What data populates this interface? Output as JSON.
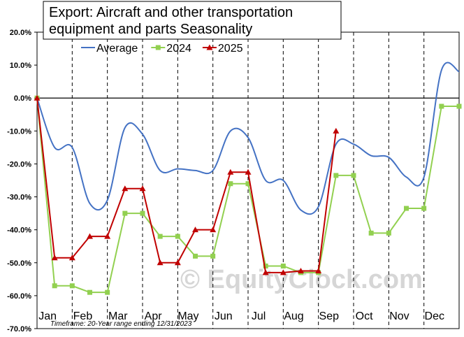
{
  "chart_data": {
    "type": "line",
    "title_lines": [
      "Export: Aircraft and other transportation",
      "equipment and parts Seasonality"
    ],
    "footnote": "Timeframe: 20-Year range ending 12/31/2023",
    "watermark": "© EquityClock.com",
    "ylim": [
      -70,
      20
    ],
    "ytick_values": [
      20,
      10,
      0,
      -10,
      -20,
      -30,
      -40,
      -50,
      -60,
      -70
    ],
    "ytick_labels": [
      "20.0%",
      "10.0%",
      "0.0%",
      "-10.0%",
      "-20.0%",
      "-30.0%",
      "-40.0%",
      "-50.0%",
      "-60.0%",
      "-70.0%"
    ],
    "months": [
      "Jan",
      "Feb",
      "Mar",
      "Apr",
      "May",
      "Jun",
      "Jul",
      "Aug",
      "Sep",
      "Oct",
      "Nov",
      "Dec"
    ],
    "grid": "dashed vertical lines between months; horizontal line at 0%",
    "legend_position": "top",
    "colors": {
      "average": "#4472c4",
      "y2024": "#92d050",
      "y2025": "#c00000",
      "grid": "#000000",
      "watermark": "#d6d6d6"
    },
    "series": [
      {
        "name": "Average",
        "style": "smooth line",
        "x": [
          0,
          0.5,
          1,
          1.5,
          2,
          2.5,
          3,
          3.5,
          4,
          4.5,
          5,
          5.5,
          6,
          6.5,
          7,
          7.5,
          8,
          8.5,
          9,
          9.5,
          10,
          10.5,
          11,
          11.5,
          12
        ],
        "values": [
          0,
          -15,
          -15,
          -32,
          -31,
          -9,
          -11,
          -22,
          -21.5,
          -22,
          -22,
          -10,
          -12,
          -25,
          -25,
          -34,
          -33,
          -14,
          -14,
          -17.5,
          -18,
          -24,
          -24,
          8.5,
          8
        ]
      },
      {
        "name": "2024",
        "style": "line with square markers",
        "x": [
          0,
          0.5,
          1,
          1.5,
          2,
          2.5,
          3,
          3.5,
          4,
          4.5,
          5,
          5.5,
          6,
          6.5,
          7,
          7.5,
          8,
          8.5,
          9,
          9.5,
          10,
          10.5,
          11,
          11.5,
          12
        ],
        "values": [
          0,
          -57,
          -57,
          -59,
          -59,
          -35,
          -35,
          -42,
          -42,
          -48,
          -48,
          -26,
          -26,
          -51,
          -51,
          -53,
          -53,
          -23.5,
          -23.5,
          -41,
          -41,
          -33.5,
          -33.5,
          -2.5,
          -2.5
        ]
      },
      {
        "name": "2025",
        "style": "line with triangle markers",
        "x": [
          0,
          0.5,
          1,
          1.5,
          2,
          2.5,
          3,
          3.5,
          4,
          4.5,
          5,
          5.5,
          6,
          6.5,
          7,
          7.5,
          8,
          8.5
        ],
        "values": [
          0,
          -48.5,
          -48.5,
          -42,
          -42,
          -27.5,
          -27.5,
          -50,
          -50,
          -40,
          -40,
          -22.5,
          -22.5,
          -53,
          -53,
          -52.5,
          -52.5,
          -10
        ]
      }
    ]
  }
}
